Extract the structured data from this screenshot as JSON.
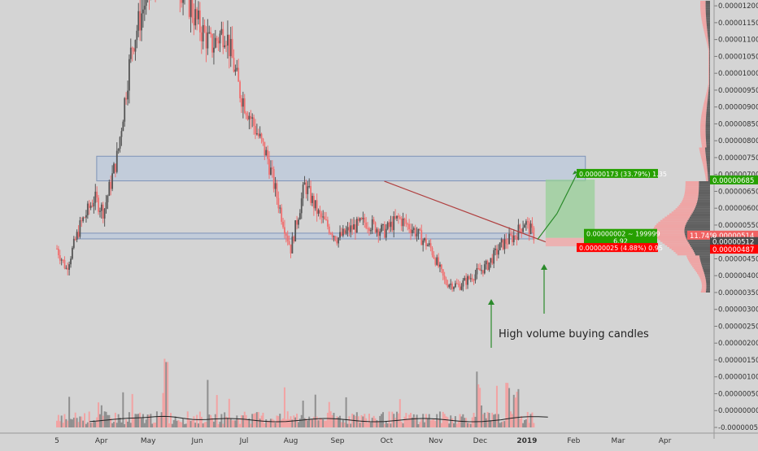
{
  "chart_data": {
    "type": "candlestick",
    "title": "",
    "xlabel": "",
    "ylabel": "",
    "y_axis_position": "right",
    "ylim": [
      -5.5e-07,
      1.225e-05
    ],
    "x_tick_labels": [
      "5",
      "Apr",
      "May",
      "Jun",
      "Jul",
      "Aug",
      "Sep",
      "Oct",
      "Nov",
      "Dec",
      "2019",
      "Feb",
      "Mar",
      "Apr"
    ],
    "y_tick_labels": [
      "0.00001200",
      "0.00001150",
      "0.00001100",
      "0.00001050",
      "0.00001000",
      "0.00000950",
      "0.00000900",
      "0.00000850",
      "0.00000800",
      "0.00000750",
      "0.00000700",
      "0.00000650",
      "0.00000600",
      "0.00000550",
      "0.00000500",
      "0.00000450",
      "0.00000400",
      "0.00000350",
      "0.00000300",
      "0.00000250",
      "0.00000200",
      "0.00000150",
      "0.00000100",
      "0.00000050",
      "0.00000000",
      "-0.00000050"
    ],
    "y_tick_values": [
      1.2e-05,
      1.15e-05,
      1.1e-05,
      1.05e-05,
      1e-05,
      9.5e-06,
      9e-06,
      8.5e-06,
      8e-06,
      7.5e-06,
      7e-06,
      6.5e-06,
      6e-06,
      5.5e-06,
      5e-06,
      4.5e-06,
      4e-06,
      3.5e-06,
      3e-06,
      2.5e-06,
      2e-06,
      1.5e-06,
      1e-06,
      5e-07,
      0,
      -5e-07
    ],
    "price_path": {
      "months": [
        0,
        0.2,
        0.5,
        0.8,
        1.0,
        1.3,
        1.6,
        1.9,
        2.1,
        2.4,
        2.7,
        3.0,
        3.3,
        3.6,
        3.9,
        4.2,
        4.5,
        4.8,
        5.0,
        5.3,
        5.6,
        6.0,
        6.3,
        6.6,
        7.0,
        7.3,
        7.6,
        8.0,
        8.3,
        8.6,
        8.9,
        9.2,
        9.5,
        9.8,
        10.0,
        10.2
      ],
      "prices": [
        4.8e-06,
        4.2e-06,
        5.5e-06,
        6.3e-06,
        5.9e-06,
        7.6e-06,
        1.08e-05,
        1.22e-05,
        1.28e-05,
        1.3e-05,
        1.25e-05,
        1.15e-05,
        1.08e-05,
        1.13e-05,
        9.5e-06,
        8.5e-06,
        7.5e-06,
        5.8e-06,
        4.8e-06,
        6.7e-06,
        5.8e-06,
        5.1e-06,
        5.4e-06,
        5.6e-06,
        5.3e-06,
        5.7e-06,
        5.4e-06,
        4.8e-06,
        3.8e-06,
        3.7e-06,
        4e-06,
        4.3e-06,
        4.9e-06,
        5.2e-06,
        5.6e-06,
        5.2e-06
      ]
    },
    "zones": [
      {
        "name": "upper-zone",
        "from": 6.81e-06,
        "to": 7.54e-06,
        "x_from": 0.85,
        "x_to": 11.3,
        "color": "#b3c4de"
      },
      {
        "name": "lower-zone",
        "from": 5.09e-06,
        "to": 5.26e-06,
        "x_from": 0.45,
        "x_to": 10.2,
        "color": "#b3c4de"
      }
    ],
    "trendline": {
      "x1": 7.0,
      "y1": 6.8e-06,
      "x2": 10.45,
      "y2": 5e-06
    },
    "position": {
      "entry": 5.12e-06,
      "target": 6.85e-06,
      "stop": 4.87e-06,
      "x_from": 10.45,
      "x_to": 11.5
    },
    "price_labels": [
      {
        "value": 6.85e-06,
        "text": "0.00000685",
        "color": "#26a000"
      },
      {
        "value": 5.14e-06,
        "text": "0.00000514",
        "color": "#f06262"
      },
      {
        "value": 5.12e-06,
        "text": "0.00000512",
        "color": "#4a4a4a"
      },
      {
        "value": 4.87e-06,
        "text": "0.00000487",
        "color": "#ff0000"
      }
    ],
    "percent_tag": "11.74%",
    "target_label": "0.00000173 (33.79%) 1.35",
    "entry_label_line1": "0.00000002 ~ 199999",
    "entry_label_line2": "6.92",
    "stop_label": "0.00000025 (4.88%) 0.95",
    "annotation": "High volume buying candles",
    "volume_spikes": [
      {
        "month": 2.35,
        "height": 1.0
      },
      {
        "month": 9.0,
        "height": 0.55
      },
      {
        "month": 9.8,
        "height": 0.4
      },
      {
        "month": 9.65,
        "height": 0.45
      }
    ],
    "grid": false,
    "legend": "none",
    "colors": {
      "up": "#555555",
      "down": "#f07070",
      "zone": "#b3c4de",
      "trend": "#b04040",
      "profit": "#98d098",
      "loss": "#f4a6a6",
      "arrow": "#2a8a2a"
    }
  }
}
